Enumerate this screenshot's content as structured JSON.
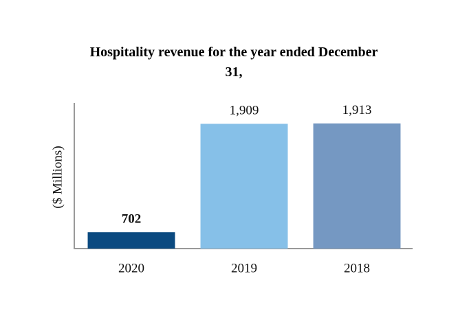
{
  "chart_data": {
    "type": "bar",
    "title": "Hospitality revenue for the year ended December 31,",
    "y_label": "($ Millions)",
    "categories": [
      "2020",
      "2019",
      "2018"
    ],
    "values": [
      702,
      1909,
      1913
    ],
    "value_labels": [
      "702",
      "1,909",
      "1,913"
    ],
    "colors": [
      "#0b4a80",
      "#86c0e8",
      "#7598c2"
    ],
    "ylim": [
      520,
      2140
    ]
  }
}
